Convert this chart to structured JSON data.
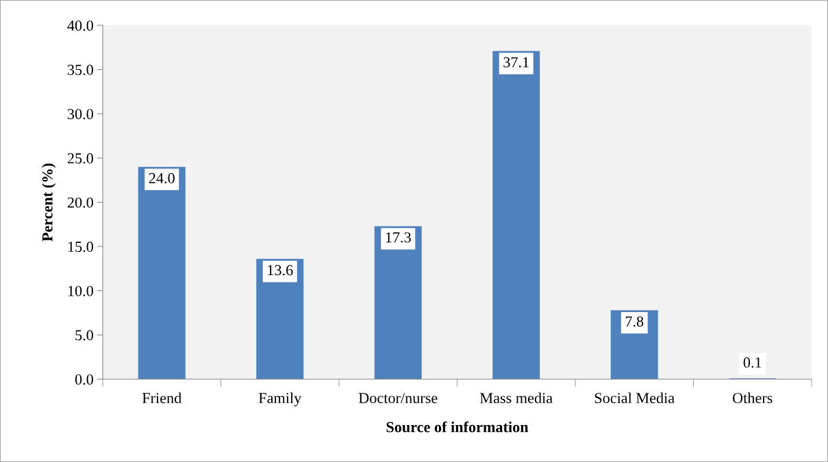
{
  "chart_data": {
    "type": "bar",
    "xlabel": "Source of information",
    "ylabel": "Percent (%)",
    "categories": [
      "Friend",
      "Family",
      "Doctor/nurse",
      "Mass media",
      "Social Media",
      "Others"
    ],
    "values": [
      24.0,
      13.6,
      17.3,
      37.1,
      7.8,
      0.1
    ],
    "color": "#4f81bd",
    "ylim": [
      0,
      40
    ],
    "yticks": [
      {
        "value": 0,
        "label": "0.0"
      },
      {
        "value": 5,
        "label": "5.0"
      },
      {
        "value": 10,
        "label": "10.0"
      },
      {
        "value": 15,
        "label": "15.0"
      },
      {
        "value": 20,
        "label": "20.0"
      },
      {
        "value": 25,
        "label": "25.0"
      },
      {
        "value": 30,
        "label": "30.0"
      },
      {
        "value": 35,
        "label": "35.0"
      },
      {
        "value": 40,
        "label": "40.0"
      }
    ],
    "value_labels": [
      "24.0",
      "13.6",
      "17.3",
      "37.1",
      "7.8",
      "0.1"
    ],
    "grid": false,
    "legend": false
  }
}
